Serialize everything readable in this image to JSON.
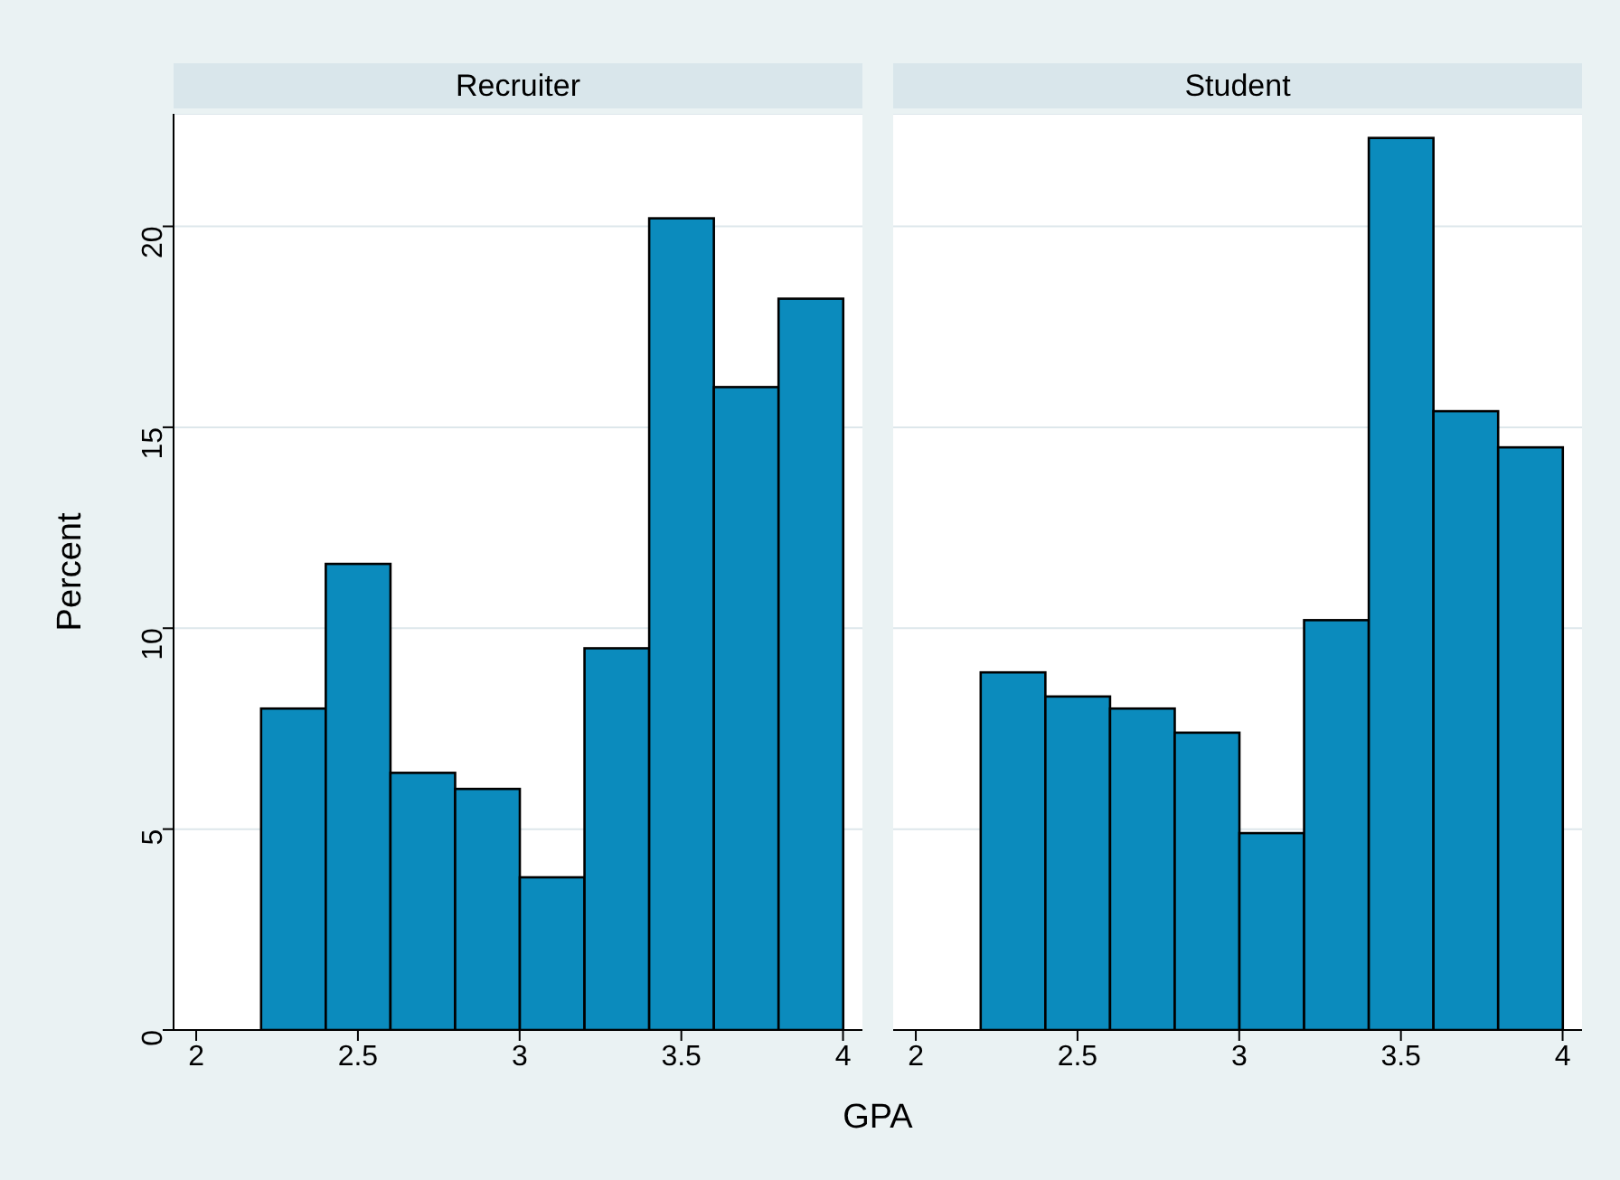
{
  "chart_data": [
    {
      "type": "histogram",
      "title": "Recruiter",
      "xlabel": "GPA",
      "ylabel": "Percent",
      "bins": [
        2.2,
        2.4,
        2.6,
        2.8,
        3.0,
        3.2,
        3.4,
        3.6,
        3.8,
        4.0
      ],
      "values": [
        8.0,
        11.6,
        6.4,
        6.0,
        3.8,
        9.5,
        20.2,
        16.0,
        18.2
      ],
      "color": "#0b8bbd",
      "xlim": [
        1.93,
        4.06
      ],
      "xticks": [
        2,
        2.5,
        3,
        3.5,
        4
      ],
      "ylim": [
        0,
        22.8
      ],
      "yticks": [
        0,
        5,
        10,
        15,
        20
      ],
      "grid": "y"
    },
    {
      "type": "histogram",
      "title": "Student",
      "bins": [
        2.2,
        2.4,
        2.6,
        2.8,
        3.0,
        3.2,
        3.4,
        3.6,
        3.8,
        4.0
      ],
      "values": [
        8.9,
        8.3,
        8.0,
        7.4,
        4.9,
        10.2,
        22.2,
        15.4,
        14.5
      ],
      "color": "#0b8bbd",
      "xlim": [
        1.93,
        4.06
      ],
      "xticks": [
        2,
        2.5,
        3,
        3.5,
        4
      ],
      "ylim": [
        0,
        22.8
      ],
      "yticks": [
        0,
        5,
        10,
        15,
        20
      ],
      "grid": "y",
      "tick_labels": "x"
    }
  ]
}
